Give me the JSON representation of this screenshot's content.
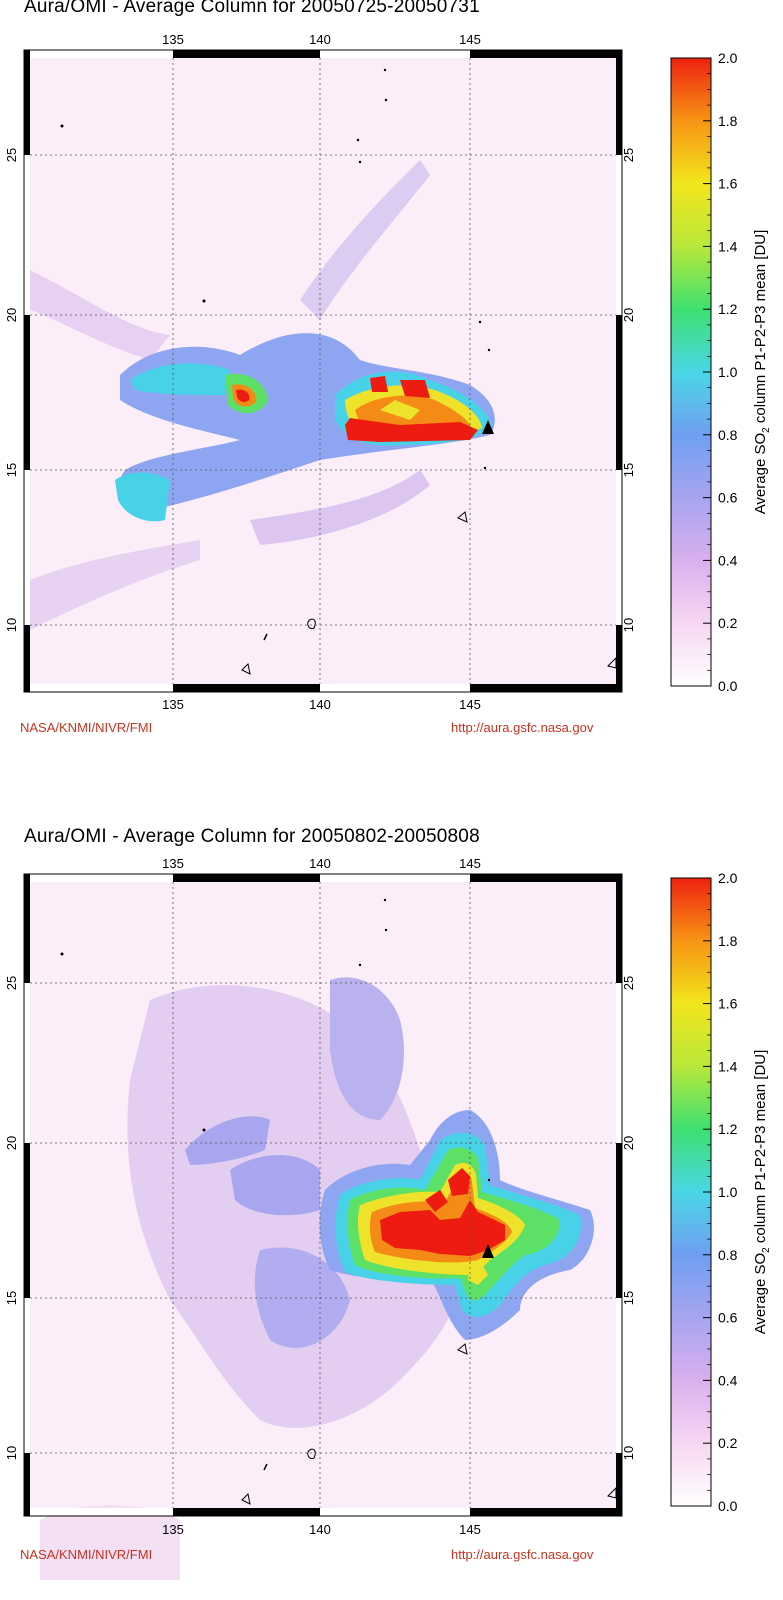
{
  "panels": [
    {
      "title": "Aura/OMI - Average Column for 20050725-20050731",
      "credit_left": "NASA/KNMI/NIVR/FMI",
      "credit_right": "http://aura.gsfc.nasa.gov"
    },
    {
      "title": "Aura/OMI - Average Column for 20050802-20050808",
      "credit_left": "NASA/KNMI/NIVR/FMI",
      "credit_right": "http://aura.gsfc.nasa.gov"
    }
  ],
  "axes": {
    "lon_ticks": [
      "135",
      "140",
      "145"
    ],
    "lat_ticks": [
      "25",
      "20",
      "15",
      "10"
    ]
  },
  "colorbar": {
    "label_main": "Average SO",
    "label_sub": "2",
    "label_rest": " column P1-P2-P3 mean [DU]",
    "ticks": [
      "2.0",
      "1.8",
      "1.6",
      "1.4",
      "1.2",
      "1.0",
      "0.8",
      "0.6",
      "0.4",
      "0.2",
      "0.0"
    ],
    "colors": [
      "#ffffff",
      "#f6d6f2",
      "#d9b0ee",
      "#a7a4f0",
      "#6f9ff2",
      "#4ad6e6",
      "#3ee070",
      "#b8e83a",
      "#f2e61c",
      "#f79414",
      "#ee2210"
    ]
  },
  "map_colors": {
    "background": "#fbeef8",
    "light": "#f3d6f0",
    "lavender": "#c7b6ef",
    "blue": "#8ea6f2",
    "cyan": "#48d2e8",
    "green": "#5ce066",
    "yellow": "#eee22a",
    "orange": "#f58b17",
    "red": "#ee1c10",
    "volcano": "#000000"
  }
}
